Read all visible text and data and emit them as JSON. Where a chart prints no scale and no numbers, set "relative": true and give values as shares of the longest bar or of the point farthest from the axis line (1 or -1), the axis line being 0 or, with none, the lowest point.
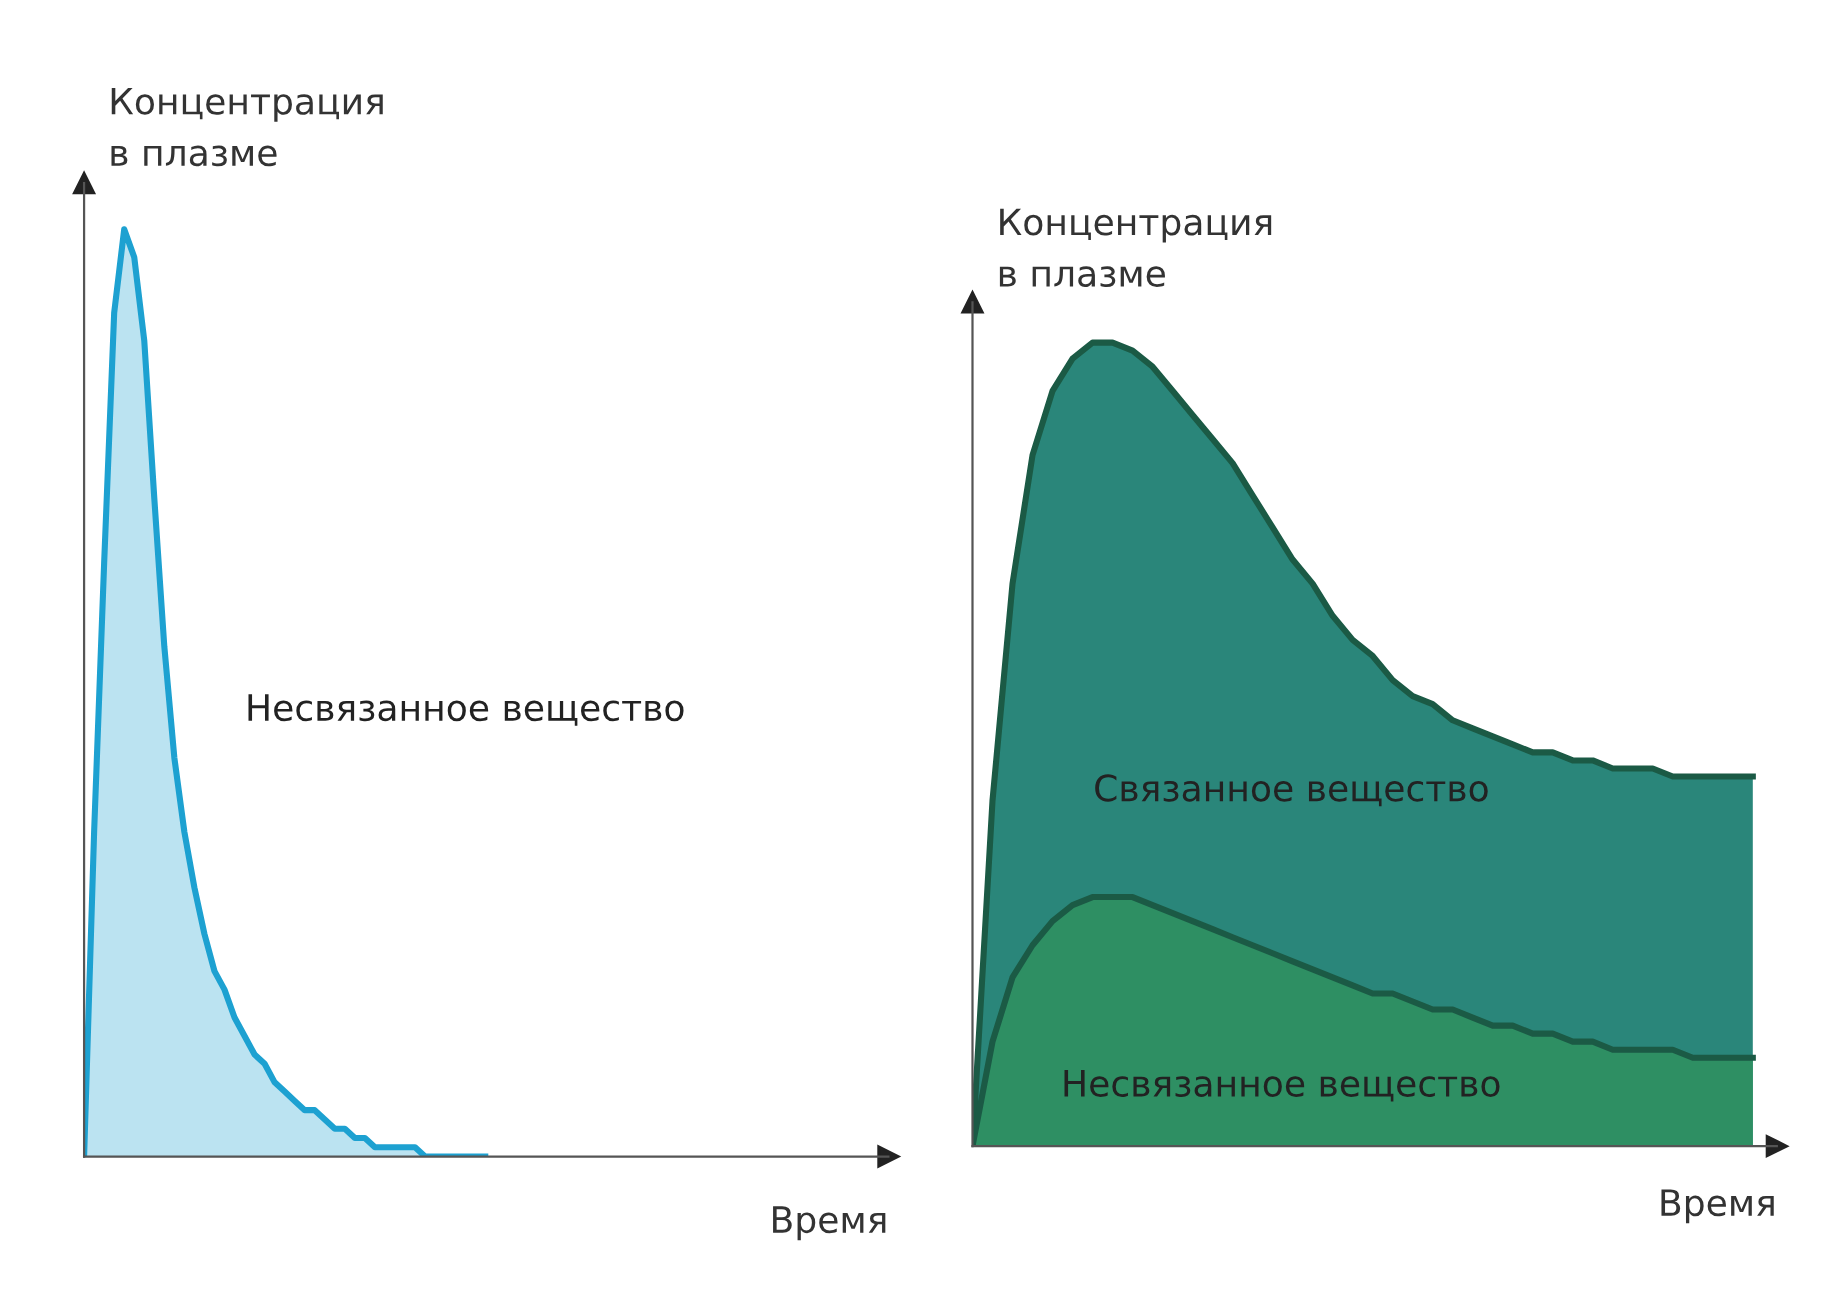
{
  "chart_data": [
    {
      "type": "area",
      "relative": true,
      "ylabel": "Концентрация\nв плазме",
      "xlabel": "Время",
      "annotations": [
        "Несвязанное вещество"
      ],
      "categories": [
        null,
        null,
        null,
        null,
        null,
        null,
        null,
        null,
        null,
        null,
        null,
        null,
        null,
        null,
        null,
        null,
        null,
        null,
        null,
        null,
        null,
        null,
        null,
        null,
        null,
        null,
        null,
        null,
        null,
        null,
        null,
        null,
        null,
        null,
        null,
        null,
        null,
        null,
        null,
        null,
        null,
        null,
        null,
        null,
        null,
        null,
        null,
        null,
        null,
        null,
        null,
        null,
        null,
        null,
        null,
        null,
        null,
        null,
        null,
        null,
        null,
        null,
        null,
        null,
        null,
        null,
        null,
        null,
        null,
        null,
        null,
        null,
        null,
        null,
        null,
        null,
        null,
        null,
        null,
        null
      ],
      "series": [
        {
          "color": "#1da1d1",
          "values": [
            0,
            0.35,
            0.64,
            0.91,
            1.0,
            0.97,
            0.88,
            0.71,
            0.55,
            0.43,
            0.35,
            0.29,
            0.24,
            0.2,
            0.18,
            0.15,
            0.13,
            0.11,
            0.1,
            0.08,
            0.07,
            0.06,
            0.05,
            0.05,
            0.04,
            0.03,
            0.03,
            0.02,
            0.02,
            0.01,
            0.01,
            0.01,
            0.01,
            0.01,
            0,
            0,
            0,
            0,
            0,
            0,
            0,
            null,
            null,
            null,
            null,
            null,
            null,
            null,
            null,
            null,
            null,
            null,
            null,
            null,
            null,
            null,
            null,
            null,
            null,
            null,
            null,
            null,
            null,
            null,
            null,
            null,
            null,
            null,
            null,
            null,
            null,
            null,
            null,
            null,
            null,
            null,
            null,
            null,
            null,
            null
          ]
        }
      ]
    },
    {
      "type": "area",
      "relative": true,
      "ylabel": "Концентрация\nв плазме",
      "xlabel": "Время",
      "annotations": [
        "Связанное вещество",
        "Несвязанное вещество"
      ],
      "categories": [
        null,
        null,
        null,
        null,
        null,
        null,
        null,
        null,
        null,
        null,
        null,
        null,
        null,
        null,
        null,
        null,
        null,
        null,
        null,
        null,
        null,
        null,
        null,
        null,
        null,
        null,
        null,
        null,
        null,
        null,
        null,
        null,
        null,
        null,
        null,
        null,
        null,
        null,
        null,
        null
      ],
      "series": [
        {
          "color": "#1f7f73",
          "values": [
            0,
            0.43,
            0.7,
            0.86,
            0.94,
            0.98,
            1.0,
            1.0,
            0.99,
            0.97,
            0.94,
            0.91,
            0.88,
            0.85,
            0.81,
            0.77,
            0.73,
            0.7,
            0.66,
            0.63,
            0.61,
            0.58,
            0.56,
            0.55,
            0.53,
            0.52,
            0.51,
            0.5,
            0.49,
            0.49,
            0.48,
            0.48,
            0.47,
            0.47,
            0.47,
            0.46,
            0.46,
            0.46,
            0.46,
            0.46
          ]
        },
        {
          "color": "#2e8f63",
          "values": [
            0,
            0.13,
            0.21,
            0.25,
            0.28,
            0.3,
            0.31,
            0.31,
            0.31,
            0.3,
            0.29,
            0.28,
            0.27,
            0.26,
            0.25,
            0.24,
            0.23,
            0.22,
            0.21,
            0.2,
            0.19,
            0.19,
            0.18,
            0.17,
            0.17,
            0.16,
            0.15,
            0.15,
            0.14,
            0.14,
            0.13,
            0.13,
            0.12,
            0.12,
            0.12,
            0.12,
            0.11,
            0.11,
            0.11,
            0.11
          ]
        }
      ]
    }
  ]
}
